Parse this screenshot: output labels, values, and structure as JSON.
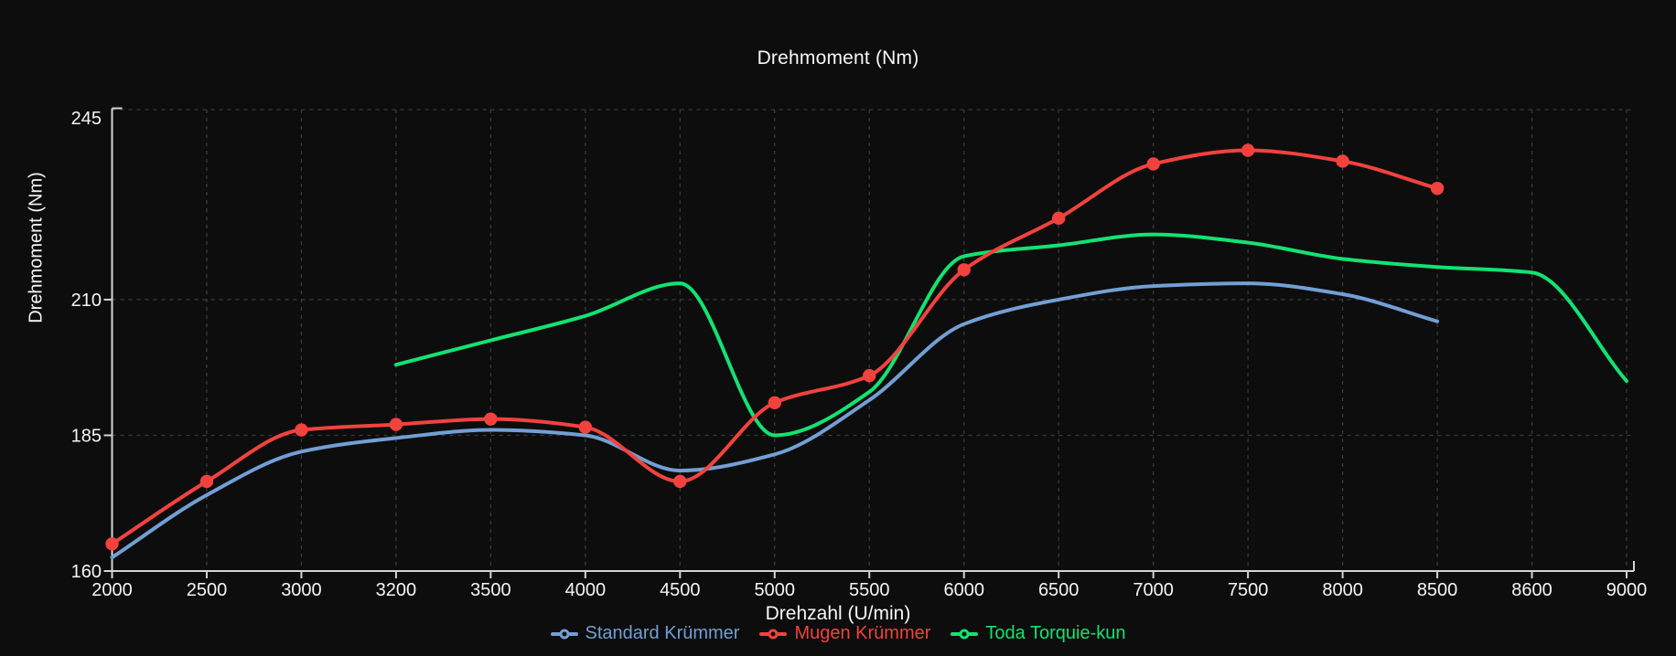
{
  "app": {
    "background_color": "#0d0d0d",
    "text_color": "#f5f5f5",
    "axis_color": "#d4d4d4",
    "grid_color": "#3a3a3a"
  },
  "chart_data": {
    "type": "line",
    "title": "Drehmoment (Nm)",
    "xlabel": "Drehzahl (U/min)",
    "ylabel": "Drehmoment (Nm)",
    "x_categories": [
      "2000",
      "2500",
      "3000",
      "3200",
      "3500",
      "4000",
      "4500",
      "5000",
      "5500",
      "6000",
      "6500",
      "7000",
      "7500",
      "8000",
      "8500",
      "8600",
      "9000"
    ],
    "y_ticks": [
      "245",
      "210",
      "185",
      "160"
    ],
    "y_tick_values": [
      245,
      210,
      185,
      160
    ],
    "ylim": [
      160,
      245
    ],
    "grid": "dashed horizontal and vertical gridlines",
    "legend_position": "bottom-center",
    "curve_style": "smooth monotone spline",
    "series": [
      {
        "name": "Standard Krümmer",
        "color": "#729fd4",
        "point_markers": false,
        "values": [
          162.5,
          174,
          182,
          184.5,
          186,
          185,
          178.5,
          181.5,
          191.5,
          205.5,
          210,
          212.5,
          213,
          211,
          206,
          null,
          null
        ]
      },
      {
        "name": "Mugen Krümmer",
        "color": "#f2423e",
        "point_markers": true,
        "values": [
          165,
          176.5,
          186,
          187,
          188,
          186.5,
          176.5,
          191,
          196,
          215.5,
          225,
          235,
          237.5,
          235.5,
          230.5,
          null,
          null
        ]
      },
      {
        "name": "Toda Torquie-kun",
        "color": "#13e272",
        "point_markers": false,
        "values": [
          null,
          null,
          null,
          198,
          202.5,
          207,
          213,
          185,
          193,
          218,
          220,
          222,
          220.5,
          217.5,
          216,
          215,
          195
        ]
      }
    ]
  }
}
